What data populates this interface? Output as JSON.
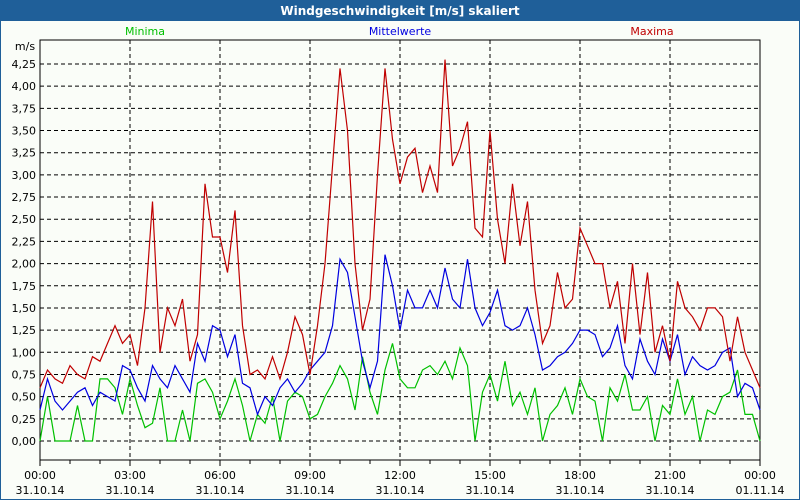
{
  "window": {
    "title": "Windgeschwindigkeit [m/s] skaliert"
  },
  "chart_data": {
    "type": "line",
    "title": "Windgeschwindigkeit [m/s] skaliert",
    "ylabel": "m/s",
    "ylim": [
      0,
      4.25
    ],
    "yticks": [
      "0,00",
      "0,25",
      "0,50",
      "0,75",
      "1,00",
      "1,25",
      "1,50",
      "1,75",
      "2,00",
      "2,25",
      "2,50",
      "2,75",
      "3,00",
      "3,25",
      "3,50",
      "3,75",
      "4,00",
      "4,25"
    ],
    "xticks": [
      {
        "time": "00:00",
        "date": "31.10.14"
      },
      {
        "time": "03:00",
        "date": "31.10.14"
      },
      {
        "time": "06:00",
        "date": "31.10.14"
      },
      {
        "time": "09:00",
        "date": "31.10.14"
      },
      {
        "time": "12:00",
        "date": "31.10.14"
      },
      {
        "time": "15:00",
        "date": "31.10.14"
      },
      {
        "time": "18:00",
        "date": "31.10.14"
      },
      {
        "time": "21:00",
        "date": "31.10.14"
      },
      {
        "time": "00:00",
        "date": "01.11.14"
      }
    ],
    "x_range_hours": [
      0,
      24
    ],
    "grid": true,
    "legend_placement": "top",
    "series": [
      {
        "name": "Minima",
        "color": "#00c000",
        "values": [
          0,
          0.5,
          0,
          0,
          0,
          0.4,
          0,
          0,
          0.7,
          0.7,
          0.6,
          0.3,
          0.7,
          0.4,
          0.15,
          0.2,
          0.6,
          0,
          0,
          0.35,
          0,
          0.65,
          0.7,
          0.55,
          0.25,
          0.45,
          0.7,
          0.4,
          0,
          0.3,
          0.2,
          0.5,
          0,
          0.45,
          0.55,
          0.5,
          0.25,
          0.3,
          0.5,
          0.65,
          0.85,
          0.7,
          0.35,
          0.95,
          0.55,
          0.3,
          0.8,
          1.1,
          0.7,
          0.6,
          0.6,
          0.8,
          0.85,
          0.75,
          0.9,
          0.7,
          1.05,
          0.85,
          0,
          0.55,
          0.75,
          0.45,
          0.9,
          0.4,
          0.55,
          0.3,
          0.6,
          0,
          0.3,
          0.4,
          0.6,
          0.3,
          0.7,
          0.5,
          0.45,
          0,
          0.6,
          0.45,
          0.75,
          0.35,
          0.35,
          0.5,
          0,
          0.4,
          0.3,
          0.7,
          0.3,
          0.5,
          0,
          0.35,
          0.3,
          0.5,
          0.55,
          0.8,
          0.3,
          0.3,
          0
        ]
      },
      {
        "name": "Mittelwerte",
        "color": "#0000e0",
        "values": [
          0.35,
          0.7,
          0.45,
          0.35,
          0.45,
          0.55,
          0.6,
          0.4,
          0.55,
          0.5,
          0.45,
          0.85,
          0.8,
          0.6,
          0.45,
          0.85,
          0.7,
          0.6,
          0.85,
          0.7,
          0.55,
          1.1,
          0.9,
          1.3,
          1.25,
          0.95,
          1.2,
          0.65,
          0.6,
          0.3,
          0.5,
          0.4,
          0.6,
          0.7,
          0.55,
          0.65,
          0.8,
          0.9,
          1.0,
          1.3,
          2.05,
          1.9,
          1.4,
          0.9,
          0.6,
          0.9,
          2.1,
          1.75,
          1.25,
          1.7,
          1.5,
          1.5,
          1.7,
          1.5,
          1.95,
          1.6,
          1.5,
          2.05,
          1.5,
          1.3,
          1.45,
          1.7,
          1.3,
          1.25,
          1.3,
          1.5,
          1.2,
          0.8,
          0.85,
          0.95,
          1.0,
          1.1,
          1.25,
          1.25,
          1.2,
          0.95,
          1.05,
          1.3,
          0.85,
          0.7,
          1.15,
          0.9,
          0.75,
          1.15,
          0.9,
          1.2,
          0.75,
          0.95,
          0.85,
          0.8,
          0.85,
          1.0,
          1.05,
          0.5,
          0.65,
          0.6,
          0.35
        ]
      },
      {
        "name": "Maxima",
        "color": "#c00000",
        "values": [
          0.6,
          0.8,
          0.7,
          0.65,
          0.85,
          0.75,
          0.7,
          0.95,
          0.9,
          1.1,
          1.3,
          1.1,
          1.2,
          0.85,
          1.5,
          2.7,
          1.0,
          1.5,
          1.3,
          1.6,
          0.9,
          1.2,
          2.9,
          2.3,
          2.3,
          1.9,
          2.6,
          1.3,
          0.75,
          0.8,
          0.7,
          0.95,
          0.7,
          1.0,
          1.4,
          1.2,
          0.75,
          1.3,
          2.0,
          3.1,
          4.2,
          3.5,
          2.0,
          1.25,
          1.6,
          3.0,
          4.2,
          3.4,
          2.9,
          3.2,
          3.3,
          2.8,
          3.1,
          2.8,
          4.3,
          3.1,
          3.3,
          3.6,
          2.4,
          2.3,
          3.5,
          2.5,
          2.0,
          2.9,
          2.2,
          2.7,
          1.7,
          1.1,
          1.3,
          1.9,
          1.5,
          1.6,
          2.4,
          2.2,
          2.0,
          2.0,
          1.5,
          1.8,
          1.1,
          2.0,
          1.2,
          1.9,
          1.0,
          1.3,
          0.9,
          1.8,
          1.5,
          1.4,
          1.25,
          1.5,
          1.5,
          1.4,
          0.9,
          1.4,
          1.0,
          0.8,
          0.6
        ]
      }
    ]
  }
}
